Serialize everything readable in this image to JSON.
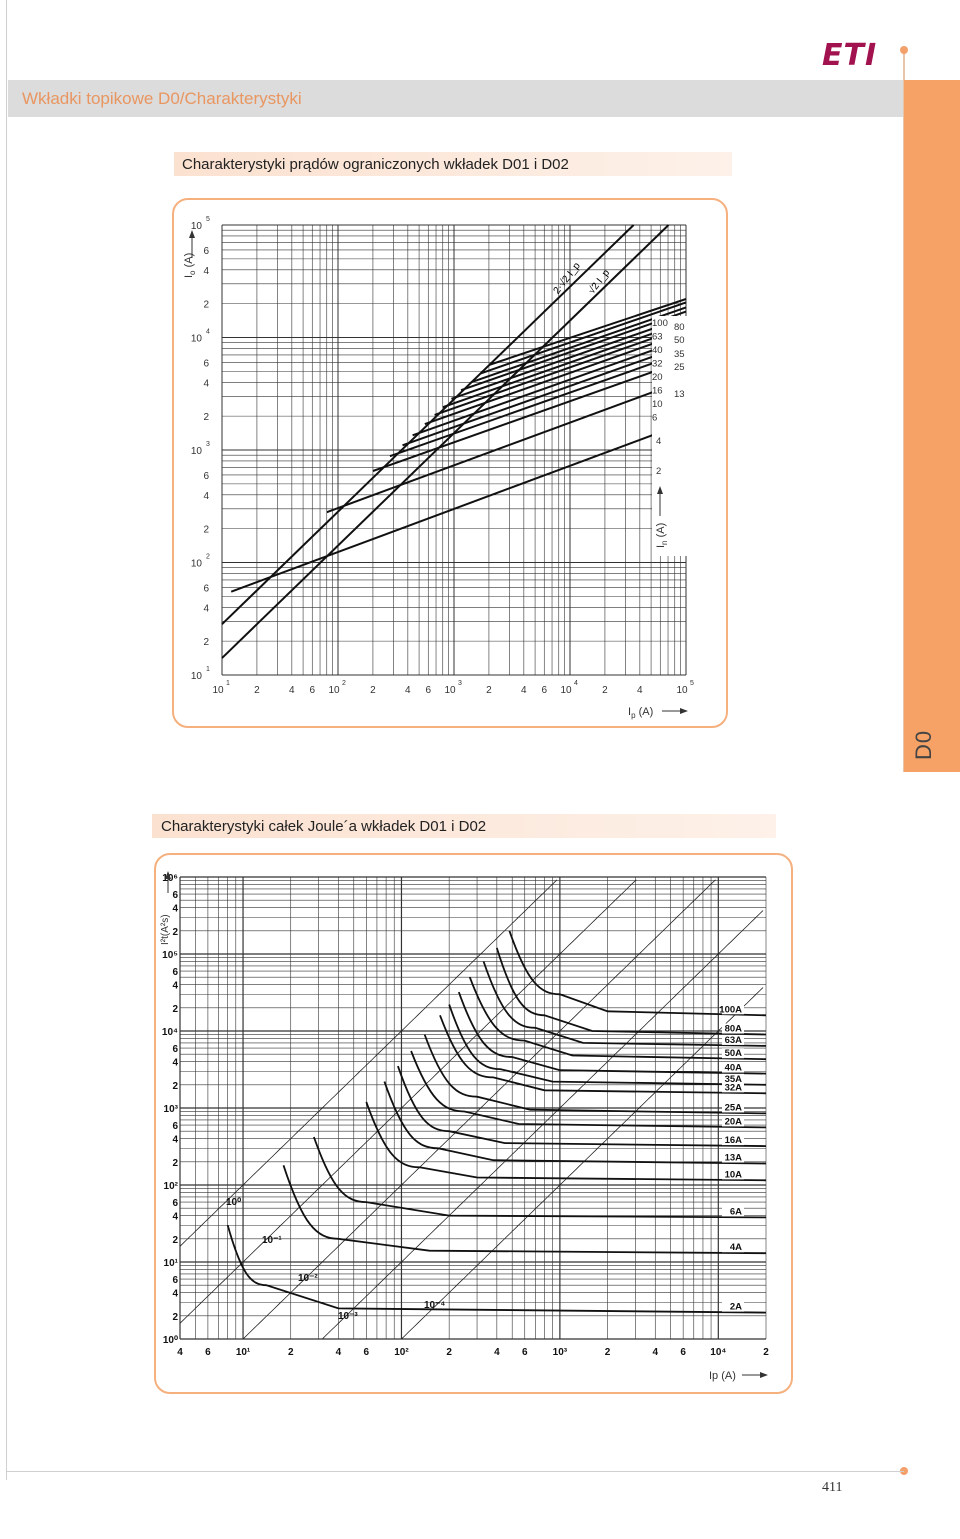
{
  "brand": {
    "logo_text": "ETI",
    "logo_color": "#a1124f"
  },
  "header": {
    "title": "Wkładki topikowe D0/Charakterystyki",
    "title_color": "#e99660"
  },
  "side_tab": {
    "label": "D0",
    "color": "#f6a165"
  },
  "section1": {
    "title": "Charakterystyki prądów ograniczonych wkładek D01 i D02"
  },
  "section2": {
    "title": "Charakterystyki całek Joule´a wkładek D01 i D02"
  },
  "page_number": "411",
  "chart_data": [
    {
      "type": "line",
      "xscale": "log",
      "yscale": "log",
      "xlim": [
        10,
        100000
      ],
      "ylim": [
        10,
        100000
      ],
      "ylabel": "I",
      "ylabel_sub": "o",
      "ylabel_unit": "(A)",
      "xlabel": "I",
      "xlabel_sub": "p",
      "xlabel_unit": "(A)",
      "right_axis_label": "I",
      "right_axis_sub": "n",
      "right_axis_unit": "(A)",
      "decade_labels": [
        "10",
        "10",
        "10",
        "10",
        "10"
      ],
      "decade_exponents": [
        "1",
        "2",
        "3",
        "4",
        "5"
      ],
      "y_minor_labels": [
        "2",
        "4",
        "6"
      ],
      "x_minor_labels": [
        "2",
        "4",
        "6"
      ],
      "right_minor_labels": [
        "2",
        "4"
      ],
      "peak_lines": [
        {
          "label": "2·√2 I_p",
          "factor": 2.828
        },
        {
          "label": "√2 I_p",
          "factor": 1.414
        }
      ],
      "rated_currents_col1": [
        "100",
        "63",
        "40",
        "32",
        "20",
        "16",
        "10",
        "6"
      ],
      "rated_currents_col2": [
        "80",
        "50",
        "35",
        "25",
        "13"
      ],
      "series": [
        {
          "name": "100",
          "x": [
            2000,
            100000
          ],
          "y": [
            5700,
            22000
          ]
        },
        {
          "name": "80",
          "x": [
            1700,
            100000
          ],
          "y": [
            4800,
            20500
          ]
        },
        {
          "name": "63",
          "x": [
            1400,
            100000
          ],
          "y": [
            4000,
            18500
          ]
        },
        {
          "name": "50",
          "x": [
            1150,
            100000
          ],
          "y": [
            3400,
            17000
          ]
        },
        {
          "name": "40",
          "x": [
            950,
            100000
          ],
          "y": [
            2850,
            15200
          ]
        },
        {
          "name": "35",
          "x": [
            800,
            100000
          ],
          "y": [
            2400,
            13800
          ]
        },
        {
          "name": "32",
          "x": [
            680,
            100000
          ],
          "y": [
            2050,
            12500
          ]
        },
        {
          "name": "25",
          "x": [
            560,
            100000
          ],
          "y": [
            1700,
            11200
          ]
        },
        {
          "name": "20",
          "x": [
            440,
            100000
          ],
          "y": [
            1350,
            9800
          ]
        },
        {
          "name": "16",
          "x": [
            360,
            100000
          ],
          "y": [
            1100,
            8600
          ]
        },
        {
          "name": "13",
          "x": [
            280,
            100000
          ],
          "y": [
            880,
            7500
          ]
        },
        {
          "name": "10",
          "x": [
            200,
            100000
          ],
          "y": [
            650,
            6300
          ]
        },
        {
          "name": "6",
          "x": [
            80,
            100000
          ],
          "y": [
            280,
            4200
          ]
        },
        {
          "name": "2",
          "x": [
            12,
            100000
          ],
          "y": [
            55,
            1750
          ]
        }
      ]
    },
    {
      "type": "line",
      "xscale": "log",
      "yscale": "log",
      "xlim": [
        4,
        20000
      ],
      "ylim": [
        1,
        1000000
      ],
      "ylabel": "I²t(A²s)",
      "xlabel": "Ip (A)",
      "y_tick_labels": [
        "10⁰",
        "2",
        "4",
        "6",
        "10¹",
        "2",
        "4",
        "6",
        "10²",
        "2",
        "4",
        "6",
        "10³",
        "2",
        "4",
        "6",
        "10⁴",
        "2",
        "4",
        "6",
        "10⁵",
        "2",
        "4",
        "6",
        "10⁶"
      ],
      "x_tick_labels": [
        "4",
        "6",
        "10¹",
        "2",
        "4",
        "6",
        "10²",
        "2",
        "4",
        "6",
        "10³",
        "2",
        "4",
        "6",
        "10⁴",
        "2"
      ],
      "time_labels": [
        "10⁰",
        "10⁻¹",
        "10⁻²",
        "10⁻³",
        "10⁻⁴"
      ],
      "series": [
        {
          "name": "100A",
          "x": [
            480,
            1000,
            2000,
            20000
          ],
          "y": [
            200000,
            30000,
            18000,
            16000
          ]
        },
        {
          "name": "80A",
          "x": [
            400,
            800,
            1600,
            20000
          ],
          "y": [
            120000,
            16000,
            10000,
            9000
          ]
        },
        {
          "name": "63A",
          "x": [
            330,
            700,
            1400,
            20000
          ],
          "y": [
            80000,
            11000,
            7000,
            6400
          ]
        },
        {
          "name": "50A",
          "x": [
            270,
            600,
            1200,
            20000
          ],
          "y": [
            50000,
            7500,
            4800,
            4300
          ]
        },
        {
          "name": "40A",
          "x": [
            230,
            500,
            1000,
            20000
          ],
          "y": [
            32000,
            4600,
            3100,
            2800
          ]
        },
        {
          "name": "35A",
          "x": [
            200,
            420,
            900,
            20000
          ],
          "y": [
            22000,
            3200,
            2200,
            2000
          ]
        },
        {
          "name": "32A",
          "x": [
            175,
            380,
            800,
            20000
          ],
          "y": [
            16000,
            2500,
            1700,
            1550
          ]
        },
        {
          "name": "25A",
          "x": [
            140,
            300,
            650,
            20000
          ],
          "y": [
            9000,
            1400,
            950,
            850
          ]
        },
        {
          "name": "20A",
          "x": [
            115,
            250,
            550,
            20000
          ],
          "y": [
            5500,
            900,
            620,
            560
          ]
        },
        {
          "name": "16A",
          "x": [
            95,
            200,
            450,
            20000
          ],
          "y": [
            3500,
            500,
            350,
            320
          ]
        },
        {
          "name": "13A",
          "x": [
            78,
            170,
            380,
            20000
          ],
          "y": [
            2200,
            300,
            210,
            190
          ]
        },
        {
          "name": "10A",
          "x": [
            60,
            130,
            300,
            20000
          ],
          "y": [
            1200,
            170,
            125,
            115
          ]
        },
        {
          "name": "6A",
          "x": [
            28,
            60,
            200,
            20000
          ],
          "y": [
            420,
            60,
            40,
            38
          ]
        },
        {
          "name": "4A",
          "x": [
            18,
            40,
            150,
            20000
          ],
          "y": [
            180,
            20,
            14,
            13
          ]
        },
        {
          "name": "2A",
          "x": [
            8,
            14,
            40,
            20000
          ],
          "y": [
            30,
            5,
            2.5,
            2.2
          ]
        }
      ]
    }
  ]
}
